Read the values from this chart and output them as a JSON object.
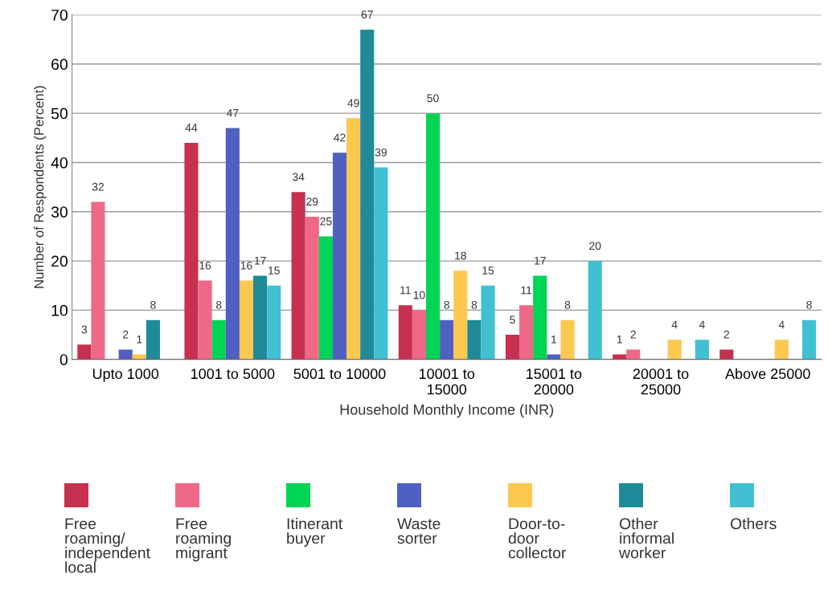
{
  "chart_data": {
    "type": "bar",
    "xlabel": "Household Monthly Income (INR)",
    "ylabel": "Number of Respondents (Percent)",
    "categories": [
      "Upto 1000",
      "1001 to 5000",
      "5001 to 10000",
      "10001 to\n15000",
      "15001 to\n20000",
      "20001 to\n25000",
      "Above 25000"
    ],
    "series": [
      {
        "name": "Free\nroaming/\nindependent\nlocal",
        "color": "#c8304f",
        "values": [
          3,
          44,
          34,
          11,
          5,
          1,
          2
        ]
      },
      {
        "name": "Free\nroaming\nmigrant",
        "color": "#f06888",
        "values": [
          32,
          16,
          29,
          10,
          11,
          2,
          null
        ]
      },
      {
        "name": "Itinerant\nbuyer",
        "color": "#00d455",
        "values": [
          null,
          8,
          25,
          50,
          17,
          null,
          null
        ]
      },
      {
        "name": "Waste\nsorter",
        "color": "#5060c0",
        "values": [
          2,
          47,
          42,
          8,
          1,
          null,
          null
        ]
      },
      {
        "name": "Door-to-\ndoor\ncollector",
        "color": "#fcc850",
        "values": [
          1,
          16,
          49,
          18,
          8,
          4,
          4
        ]
      },
      {
        "name": "Other\ninformal\nworker",
        "color": "#1f8a98",
        "values": [
          8,
          17,
          67,
          8,
          null,
          null,
          null
        ]
      },
      {
        "name": "Others",
        "color": "#40c0d0",
        "values": [
          null,
          15,
          39,
          15,
          20,
          4,
          8
        ]
      }
    ],
    "ylim": [
      0,
      70
    ],
    "yticks": [
      0,
      10,
      20,
      30,
      40,
      50,
      60,
      70
    ],
    "grid": "y",
    "legend": "bottom",
    "data_labels": true
  }
}
